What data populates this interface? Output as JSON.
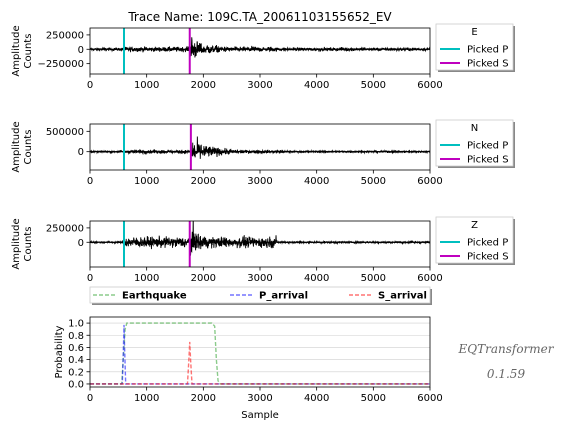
{
  "chart_data": [
    {
      "type": "line",
      "title": "Trace Name: 109C.TA_20061103155652_EV",
      "ylabel": [
        "Amplitude",
        "Counts"
      ],
      "xlim": [
        0,
        6000
      ],
      "ylim": [
        -430000,
        370000
      ],
      "xticks": [
        0,
        1000,
        2000,
        3000,
        4000,
        5000,
        6000
      ],
      "yticks": [
        {
          "value": 250000,
          "label": "250000"
        },
        {
          "value": 0,
          "label": "0"
        },
        {
          "value": -250000,
          "label": "−250000"
        }
      ],
      "p_pick": 600,
      "s_pick": 1760,
      "waveform": {
        "noise": 25000,
        "p_amp": 40000,
        "s_amp": 190000,
        "coda_end": 3300
      },
      "legend": {
        "title": "E",
        "entries": [
          {
            "name": "Picked P",
            "color": "#00bfbf"
          },
          {
            "name": "Picked S",
            "color": "#bf00bf"
          }
        ]
      }
    },
    {
      "type": "line",
      "ylabel": [
        "Amplitude",
        "Counts"
      ],
      "xlim": [
        0,
        6000
      ],
      "ylim": [
        -450000,
        680000
      ],
      "xticks": [
        0,
        1000,
        2000,
        3000,
        4000,
        5000,
        6000
      ],
      "yticks": [
        {
          "value": 500000,
          "label": "500000"
        },
        {
          "value": 0,
          "label": "0"
        }
      ],
      "p_pick": 600,
      "s_pick": 1780,
      "waveform": {
        "noise": 20000,
        "p_amp": 40000,
        "s_amp": 300000,
        "coda_end": 3400
      },
      "legend": {
        "title": "N",
        "entries": [
          {
            "name": "Picked P",
            "color": "#00bfbf"
          },
          {
            "name": "Picked S",
            "color": "#bf00bf"
          }
        ]
      }
    },
    {
      "type": "line",
      "ylabel": [
        "Amplitude",
        "Counts"
      ],
      "xlim": [
        0,
        6000
      ],
      "ylim": [
        -430000,
        370000
      ],
      "xticks": [
        0,
        1000,
        2000,
        3000,
        4000,
        5000,
        6000
      ],
      "yticks": [
        {
          "value": 250000,
          "label": "250000"
        },
        {
          "value": 0,
          "label": "0"
        }
      ],
      "p_pick": 600,
      "s_pick": 1760,
      "waveform": {
        "noise": 15000,
        "p_amp": 90000,
        "s_amp": 210000,
        "coda_end": 3300
      },
      "legend": {
        "title": "Z",
        "entries": [
          {
            "name": "Picked P",
            "color": "#00bfbf"
          },
          {
            "name": "Picked S",
            "color": "#bf00bf"
          }
        ]
      }
    },
    {
      "type": "line",
      "ylabel": [
        "Probability"
      ],
      "xlabel": "Sample",
      "xlim": [
        0,
        6000
      ],
      "ylim": [
        -0.05,
        1.1
      ],
      "xticks": [
        0,
        1000,
        2000,
        3000,
        4000,
        5000,
        6000
      ],
      "yticks": [
        {
          "value": 1.0,
          "label": "1.0"
        },
        {
          "value": 0.8,
          "label": "0.8"
        },
        {
          "value": 0.6,
          "label": "0.6"
        },
        {
          "value": 0.4,
          "label": "0.4"
        },
        {
          "value": 0.2,
          "label": "0.2"
        },
        {
          "value": 0.0,
          "label": "0.0"
        }
      ],
      "grid": true,
      "series": [
        {
          "name": "Earthquake",
          "color": "#2ca02c",
          "x": [
            0,
            560,
            620,
            650,
            2150,
            2200,
            2230,
            2260,
            2300,
            6000
          ],
          "y": [
            0,
            0,
            0.9,
            1.0,
            1.0,
            0.95,
            0.4,
            0.05,
            0,
            0
          ]
        },
        {
          "name": "P_arrival",
          "color": "#0000ff",
          "x": [
            0,
            570,
            590,
            600,
            610,
            630,
            6000
          ],
          "y": [
            0,
            0,
            0.6,
            0.97,
            0.6,
            0,
            0
          ]
        },
        {
          "name": "S_arrival",
          "color": "#ff0000",
          "x": [
            0,
            1720,
            1745,
            1760,
            1775,
            1800,
            6000
          ],
          "y": [
            0,
            0,
            0.4,
            0.69,
            0.4,
            0,
            0
          ]
        }
      ],
      "legend": {
        "placement": "top"
      }
    }
  ],
  "brand": {
    "name": "EQTransformer",
    "version": "0.1.59"
  }
}
